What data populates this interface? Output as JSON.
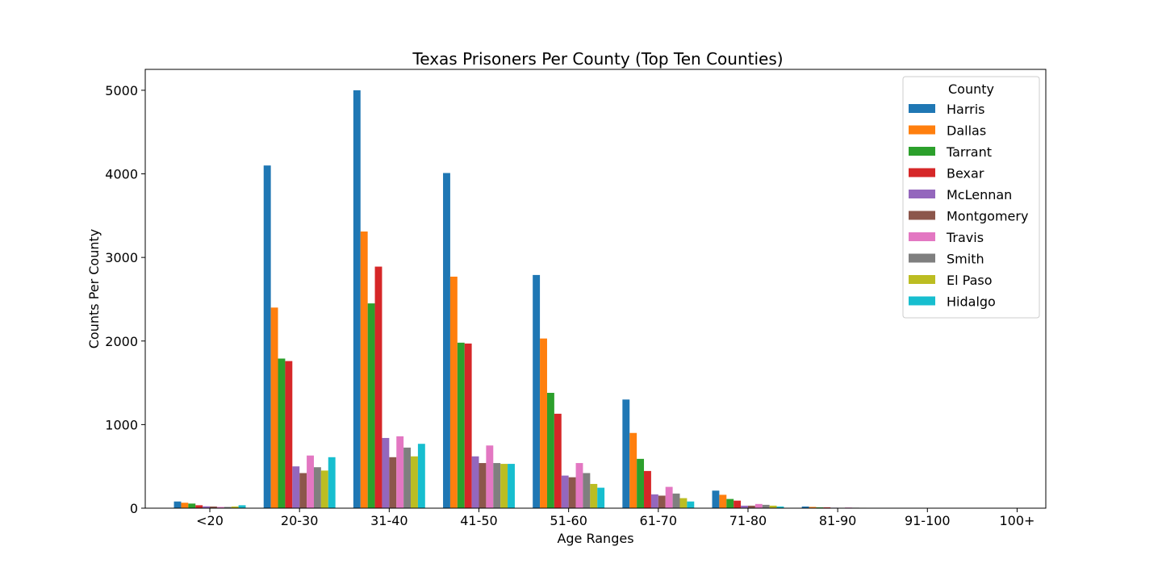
{
  "chart_data": {
    "type": "bar",
    "title": "Texas Prisoners Per County (Top Ten Counties)",
    "xlabel": "Age Ranges",
    "ylabel": "Counts Per County",
    "ylim": [
      0,
      5250
    ],
    "yticks": [
      0,
      1000,
      2000,
      3000,
      4000,
      5000
    ],
    "grid": false,
    "legend": {
      "title": "County",
      "placement": "top-right"
    },
    "categories": [
      "<20",
      "20-30",
      "31-40",
      "41-50",
      "51-60",
      "61-70",
      "71-80",
      "81-90",
      "91-100",
      "100+"
    ],
    "series": [
      {
        "name": "Harris",
        "color": "#1f77b4",
        "values": [
          80,
          4100,
          5000,
          4010,
          2790,
          1300,
          210,
          20,
          3,
          1
        ]
      },
      {
        "name": "Dallas",
        "color": "#ff7f0e",
        "values": [
          65,
          2400,
          3310,
          2770,
          2030,
          900,
          160,
          15,
          2,
          0
        ]
      },
      {
        "name": "Tarrant",
        "color": "#2ca02c",
        "values": [
          55,
          1790,
          2450,
          1980,
          1380,
          590,
          110,
          10,
          1,
          0
        ]
      },
      {
        "name": "Bexar",
        "color": "#d62728",
        "values": [
          35,
          1760,
          2890,
          1970,
          1130,
          445,
          90,
          10,
          1,
          0
        ]
      },
      {
        "name": "McLennan",
        "color": "#9467bd",
        "values": [
          22,
          500,
          840,
          620,
          390,
          165,
          30,
          6,
          0,
          0
        ]
      },
      {
        "name": "Montgomery",
        "color": "#8c564b",
        "values": [
          20,
          420,
          610,
          540,
          370,
          150,
          30,
          5,
          0,
          0
        ]
      },
      {
        "name": "Travis",
        "color": "#e377c2",
        "values": [
          15,
          630,
          860,
          750,
          540,
          255,
          50,
          8,
          1,
          0
        ]
      },
      {
        "name": "Smith",
        "color": "#7f7f7f",
        "values": [
          15,
          490,
          725,
          540,
          420,
          175,
          40,
          6,
          0,
          0
        ]
      },
      {
        "name": "El Paso",
        "color": "#bcbd22",
        "values": [
          20,
          450,
          620,
          530,
          290,
          120,
          30,
          5,
          0,
          0
        ]
      },
      {
        "name": "Hidalgo",
        "color": "#17becf",
        "values": [
          35,
          610,
          770,
          530,
          245,
          80,
          20,
          3,
          0,
          0
        ]
      }
    ]
  }
}
